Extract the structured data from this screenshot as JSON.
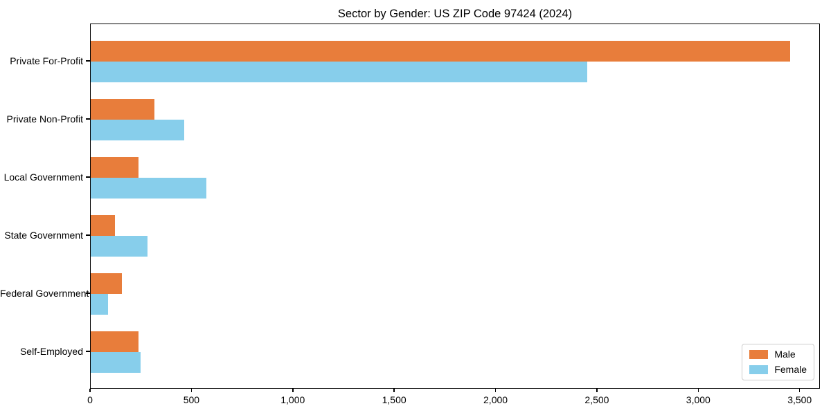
{
  "chart_data": {
    "type": "bar",
    "orientation": "horizontal",
    "title": "Sector by Gender: US ZIP Code 97424 (2024)",
    "categories": [
      "Private For-Profit",
      "Private Non-Profit",
      "Local Government",
      "State Government",
      "Federal Government",
      "Self-Employed"
    ],
    "series": [
      {
        "name": "Male",
        "color": "#e87d3b",
        "values": [
          3450,
          315,
          235,
          120,
          155,
          235
        ]
      },
      {
        "name": "Female",
        "color": "#87ceeb",
        "values": [
          2450,
          460,
          570,
          280,
          85,
          245
        ]
      }
    ],
    "xlabel": "",
    "ylabel": "",
    "xlim": [
      0,
      3600
    ],
    "xticks": [
      0,
      500,
      1000,
      1500,
      2000,
      2500,
      3000,
      3500
    ],
    "xtick_labels": [
      "0",
      "500",
      "1,000",
      "1,500",
      "2,000",
      "2,500",
      "3,000",
      "3,500"
    ],
    "grid": false,
    "background": "#ffffff",
    "legend": {
      "position": "lower right",
      "entries": [
        "Male",
        "Female"
      ]
    }
  }
}
